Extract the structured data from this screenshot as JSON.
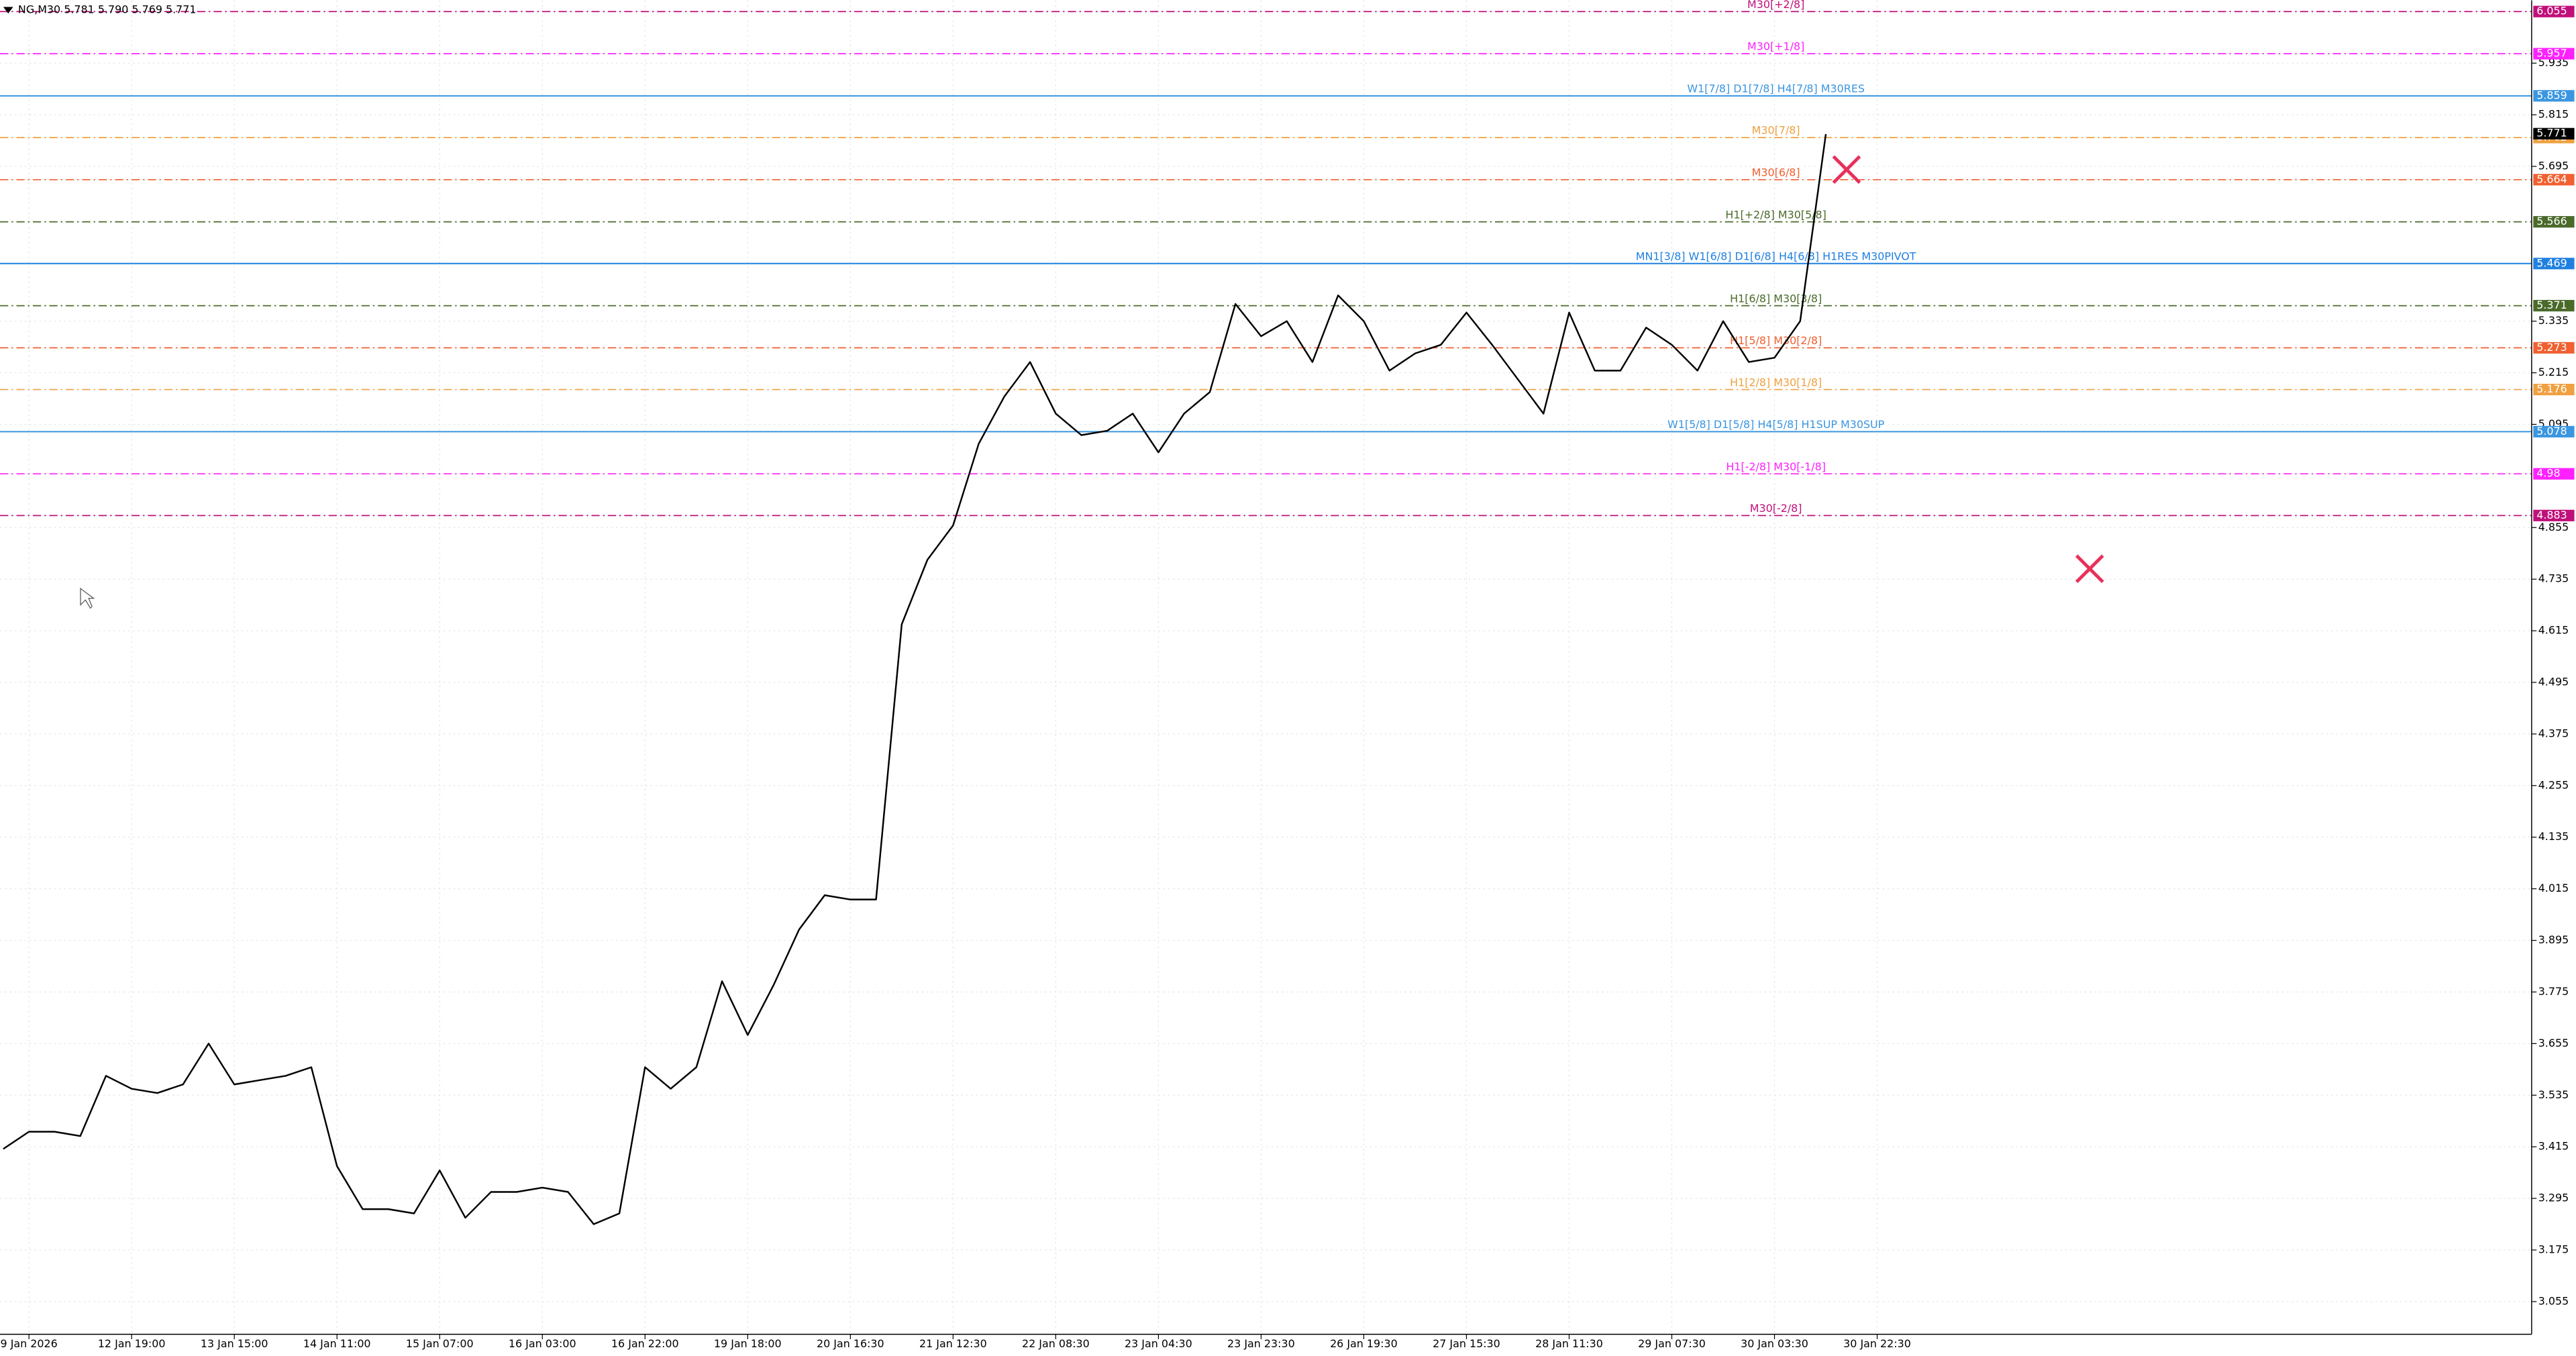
{
  "chart_data": {
    "type": "line",
    "title": "NG,M30  5.781 5.790 5.769 5.771",
    "categories": [
      null,
      "9 Jan 2026",
      null,
      null,
      null,
      "12 Jan 19:00",
      null,
      null,
      null,
      "13 Jan 15:00",
      null,
      null,
      null,
      "14 Jan 11:00",
      null,
      null,
      null,
      "15 Jan 07:00",
      null,
      null,
      null,
      "16 Jan 03:00",
      null,
      null,
      null,
      "16 Jan 22:00",
      null,
      null,
      null,
      "19 Jan 18:00",
      null,
      null,
      null,
      "20 Jan 16:30",
      null,
      null,
      null,
      "21 Jan 12:30",
      null,
      null,
      null,
      "22 Jan 08:30",
      null,
      null,
      null,
      "23 Jan 04:30",
      null,
      null,
      null,
      "23 Jan 23:30",
      null,
      null,
      null,
      "26 Jan 19:30",
      null,
      null,
      null,
      "27 Jan 15:30",
      null,
      null,
      null,
      "28 Jan 11:30",
      null,
      null,
      null,
      "29 Jan 07:30",
      null,
      null,
      null,
      "30 Jan 03:30",
      null,
      null,
      null,
      "30 Jan 22:30"
    ],
    "series": [
      {
        "name": "NG,M30",
        "color": "#000000",
        "values": [
          3.41,
          3.45,
          3.45,
          3.44,
          3.58,
          3.55,
          3.54,
          3.56,
          3.655,
          3.56,
          3.57,
          3.58,
          3.6,
          3.37,
          3.27,
          3.27,
          3.26,
          3.36,
          3.25,
          3.31,
          3.31,
          3.32,
          3.31,
          3.235,
          3.26,
          3.6,
          3.55,
          3.6,
          3.8,
          3.675,
          3.79,
          3.92,
          4.0,
          3.99,
          3.99,
          4.63,
          4.78,
          4.86,
          5.05,
          5.16,
          5.24,
          5.12,
          5.07,
          5.08,
          5.12,
          5.03,
          5.12,
          5.17,
          5.375,
          5.3,
          5.335,
          5.24,
          5.395,
          5.335,
          5.22,
          5.26,
          5.28,
          5.355,
          5.28,
          5.2,
          5.12,
          5.355,
          5.22,
          5.22,
          5.32,
          5.28,
          5.22,
          5.335,
          5.24,
          5.25,
          5.335,
          5.77,
          null,
          null
        ]
      }
    ],
    "ylim": [
      2.979,
      6.081
    ],
    "yticks": [
      3.055,
      3.175,
      3.295,
      3.415,
      3.535,
      3.655,
      3.775,
      3.895,
      4.015,
      4.135,
      4.255,
      4.375,
      4.495,
      4.615,
      4.735,
      4.855,
      5.095,
      5.215,
      5.335,
      5.695,
      5.815,
      5.935
    ],
    "grid": true,
    "last_price": 5.771,
    "levels": [
      {
        "value": 6.055,
        "label": "M30[+2/8]",
        "color": "#c0107a",
        "style": "dashdot"
      },
      {
        "value": 5.957,
        "label": "M30[+1/8]",
        "color": "#ff20ff",
        "style": "dashdot"
      },
      {
        "value": 5.859,
        "label": "W1[7/8] D1[7/8] H4[7/8] M30RES",
        "color": "#3a96e0",
        "style": "solid"
      },
      {
        "value": 5.762,
        "label": "M30[7/8]",
        "color": "#f0a040",
        "style": "dashdot"
      },
      {
        "value": 5.664,
        "label": "M30[6/8]",
        "color": "#f06030",
        "style": "dashdot"
      },
      {
        "value": 5.566,
        "label": "H1[+2/8] M30[5/8]",
        "color": "#4a6a2a",
        "style": "dashdot"
      },
      {
        "value": 5.469,
        "label": "MN1[3/8] W1[6/8] D1[6/8] H4[6/8] H1RES M30PIVOT",
        "color": "#2080e0",
        "style": "solid"
      },
      {
        "value": 5.371,
        "label": "H1[6/8] M30[3/8]",
        "color": "#4a6a2a",
        "style": "dashdot"
      },
      {
        "value": 5.273,
        "label": "H1[5/8] M30[2/8]",
        "color": "#f06030",
        "style": "dashdot"
      },
      {
        "value": 5.176,
        "label": "H1[2/8] M30[1/8]",
        "color": "#f0a040",
        "style": "dashdot"
      },
      {
        "value": 5.078,
        "label": "W1[5/8] D1[5/8] H4[5/8] H1SUP M30SUP",
        "color": "#3a96e0",
        "style": "solid"
      },
      {
        "value": 4.98,
        "label": "H1[-2/8] M30[-1/8]",
        "color": "#ff20ff",
        "style": "dashdot"
      },
      {
        "value": 4.883,
        "label": "M30[-2/8]",
        "color": "#c0107a",
        "style": "dashdot"
      }
    ]
  }
}
